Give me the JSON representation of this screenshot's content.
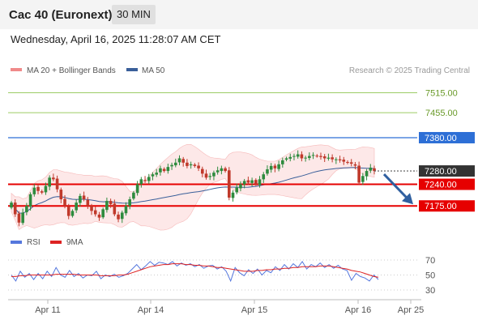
{
  "header": {
    "title": "Cac 40 (Euronext)",
    "timeframe": "30 MIN",
    "timestamp": "Wednesday, April 16, 2025 11:28:07 AM CET"
  },
  "credit": "Research © 2025 Trading Central",
  "colors": {
    "bollinger": "#f08a8a",
    "ma50": "#3a5f9a",
    "up": "#2e8b3e",
    "down": "#c0392b",
    "resistance_green": "#9ccc65",
    "pivot_blue": "#2d6fd6",
    "support_red": "#e60000",
    "last_price": "#333333",
    "rsi": "#5577dd",
    "rsi_ma": "#dd2222",
    "forecast_arrow": "#3060a0"
  },
  "chart_data": [
    {
      "type": "candlestick",
      "legend": [
        "MA 20 + Bollinger Bands",
        "MA 50"
      ],
      "ylim": [
        7088,
        7560
      ],
      "x_ticks": [
        "Apr 11",
        "Apr 14",
        "Apr 15",
        "Apr 16",
        "Apr 25"
      ],
      "levels": [
        {
          "value": 7515.0,
          "label": "7515.00",
          "role": "resistance",
          "color": "#9ccc65"
        },
        {
          "value": 7455.0,
          "label": "7455.00",
          "role": "resistance",
          "color": "#9ccc65"
        },
        {
          "value": 7380.0,
          "label": "7380.00",
          "role": "pivot",
          "color": "#2d6fd6"
        },
        {
          "value": 7240.0,
          "label": "7240.00",
          "role": "support",
          "color": "#e60000"
        },
        {
          "value": 7175.0,
          "label": "7175.00",
          "role": "support",
          "color": "#e60000"
        }
      ],
      "last_price": {
        "value": 7280.0,
        "label": "7280.00"
      },
      "forecast": {
        "from": 7280,
        "to": 7175
      },
      "closes": [
        7185,
        7150,
        7125,
        7155,
        7175,
        7210,
        7230,
        7220,
        7215,
        7235,
        7260,
        7255,
        7225,
        7195,
        7175,
        7145,
        7160,
        7185,
        7205,
        7195,
        7175,
        7160,
        7150,
        7140,
        7165,
        7190,
        7180,
        7150,
        7135,
        7155,
        7175,
        7195,
        7215,
        7240,
        7255,
        7250,
        7262,
        7270,
        7275,
        7288,
        7280,
        7292,
        7298,
        7305,
        7318,
        7305,
        7295,
        7300,
        7295,
        7288,
        7272,
        7260,
        7265,
        7275,
        7282,
        7288,
        7280,
        7200,
        7215,
        7230,
        7240,
        7250,
        7245,
        7252,
        7240,
        7255,
        7270,
        7285,
        7295,
        7288,
        7300,
        7312,
        7318,
        7322,
        7325,
        7330,
        7318,
        7320,
        7325,
        7328,
        7325,
        7322,
        7318,
        7320,
        7315,
        7315,
        7312,
        7308,
        7305,
        7302,
        7296,
        7245,
        7265,
        7280,
        7290,
        7280
      ]
    },
    {
      "type": "line",
      "title": "RSI",
      "ylim": [
        30,
        70
      ],
      "y_ticks": [
        70,
        50,
        30
      ],
      "series": [
        {
          "name": "RSI",
          "color": "#5577dd",
          "values": [
            50,
            42,
            55,
            47,
            52,
            44,
            52,
            45,
            55,
            48,
            60,
            50,
            47,
            56,
            48,
            52,
            46,
            50,
            49,
            55,
            45,
            50,
            48,
            51,
            47,
            49,
            52,
            58,
            64,
            57,
            62,
            68,
            63,
            67,
            66,
            64,
            68,
            62,
            66,
            63,
            65,
            61,
            64,
            59,
            62,
            63,
            58,
            61,
            55,
            42,
            60,
            53,
            49,
            57,
            52,
            58,
            50,
            56,
            53,
            61,
            56,
            64,
            58,
            65,
            60,
            68,
            58,
            64,
            61,
            66,
            60,
            64,
            59,
            63,
            58,
            56,
            43,
            52,
            48,
            46,
            42,
            50,
            44
          ]
        },
        {
          "name": "9MA",
          "color": "#dd2222",
          "values": [
            48,
            48,
            49,
            49,
            50,
            50,
            50,
            50,
            50,
            50,
            51,
            51,
            51,
            51,
            51,
            50,
            50,
            50,
            50,
            50,
            49,
            49,
            49,
            49,
            50,
            50,
            51,
            53,
            55,
            57,
            59,
            61,
            62,
            63,
            64,
            64,
            65,
            65,
            65,
            64,
            64,
            63,
            63,
            62,
            62,
            61,
            60,
            60,
            59,
            58,
            57,
            56,
            55,
            55,
            55,
            56,
            56,
            57,
            57,
            58,
            58,
            59,
            59,
            60,
            60,
            61,
            61,
            61,
            61,
            62,
            62,
            62,
            61,
            60,
            59,
            58,
            56,
            55,
            54,
            52,
            50,
            48,
            47
          ]
        }
      ]
    }
  ]
}
